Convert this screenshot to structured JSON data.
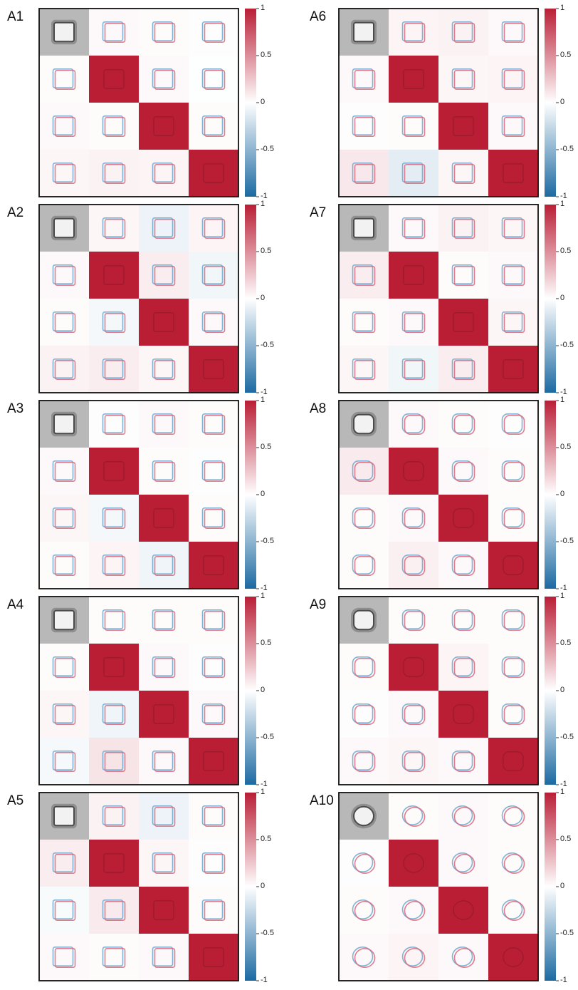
{
  "chart_data": {
    "type": "heatmap",
    "colorscale": {
      "min": -1,
      "max": 1,
      "low_color": "#1c6aa2",
      "mid_color": "#ffffff",
      "high_color": "#b91e35",
      "ticks": [
        {
          "value": 1,
          "label": "1"
        },
        {
          "value": 0.5,
          "label": "0.5"
        },
        {
          "value": 0,
          "label": "0"
        },
        {
          "value": -0.5,
          "label": "-0.5"
        },
        {
          "value": -1,
          "label": "-1"
        }
      ]
    },
    "diagonal_value": 1,
    "panels": [
      {
        "label": "A1",
        "shape": "square",
        "tint": [
          [
            0,
            0.03,
            0.02,
            0.01
          ],
          [
            0.02,
            1,
            0.03,
            -0.01
          ],
          [
            0.03,
            0.02,
            1,
            0.02
          ],
          [
            0.04,
            0.06,
            0.05,
            1
          ]
        ]
      },
      {
        "label": "A2",
        "shape": "square",
        "tint": [
          [
            0,
            0.04,
            -0.08,
            0.05
          ],
          [
            0.03,
            1,
            0.08,
            -0.06
          ],
          [
            0.02,
            -0.05,
            1,
            0.03
          ],
          [
            0.06,
            0.08,
            0.04,
            1
          ]
        ]
      },
      {
        "label": "A3",
        "shape": "square",
        "tint": [
          [
            0,
            0.01,
            0.03,
            0.02
          ],
          [
            0.03,
            1,
            0.02,
            0.01
          ],
          [
            0.04,
            -0.05,
            1,
            0.02
          ],
          [
            0.02,
            0.05,
            -0.07,
            1
          ]
        ]
      },
      {
        "label": "A4",
        "shape": "square",
        "tint": [
          [
            0,
            0.02,
            0.02,
            0.02
          ],
          [
            0.02,
            1,
            0.03,
            0.01
          ],
          [
            0.04,
            -0.07,
            1,
            0.03
          ],
          [
            -0.04,
            0.12,
            0.03,
            1
          ]
        ]
      },
      {
        "label": "A5",
        "shape": "square",
        "tint": [
          [
            0,
            0.06,
            -0.08,
            0.02
          ],
          [
            0.08,
            1,
            0.04,
            0.01
          ],
          [
            -0.03,
            0.09,
            1,
            0.02
          ],
          [
            0.03,
            0.02,
            0.03,
            1
          ]
        ]
      },
      {
        "label": "A6",
        "shape": "square",
        "tint": [
          [
            0,
            0.05,
            0.06,
            0.03
          ],
          [
            0.03,
            1,
            0.04,
            0.05
          ],
          [
            0.01,
            0.02,
            1,
            0.03
          ],
          [
            0.1,
            -0.12,
            0.04,
            1
          ]
        ]
      },
      {
        "label": "A7",
        "shape": "square",
        "tint": [
          [
            0,
            0.03,
            0.06,
            0.04
          ],
          [
            0.08,
            1,
            0.02,
            0.03
          ],
          [
            0.02,
            0.03,
            1,
            0.04
          ],
          [
            0.04,
            -0.06,
            0.08,
            1
          ]
        ]
      },
      {
        "label": "A8",
        "shape": "rounded",
        "tint": [
          [
            0,
            0.03,
            0.02,
            0.01
          ],
          [
            0.09,
            1,
            0.03,
            0.02
          ],
          [
            0.02,
            0.03,
            1,
            0.02
          ],
          [
            0.02,
            0.07,
            0.03,
            1
          ]
        ]
      },
      {
        "label": "A9",
        "shape": "rounded",
        "tint": [
          [
            0,
            0.02,
            0.02,
            0.02
          ],
          [
            0.02,
            1,
            0.05,
            0.02
          ],
          [
            0.01,
            0.03,
            1,
            0.02
          ],
          [
            0.03,
            0.04,
            0.03,
            1
          ]
        ]
      },
      {
        "label": "A10",
        "shape": "circle",
        "tint": [
          [
            0,
            0.02,
            0.03,
            0.02
          ],
          [
            0.01,
            1,
            0.03,
            0.02
          ],
          [
            0.02,
            0.03,
            1,
            0.02
          ],
          [
            0.03,
            0.05,
            0.03,
            1
          ]
        ]
      }
    ]
  }
}
